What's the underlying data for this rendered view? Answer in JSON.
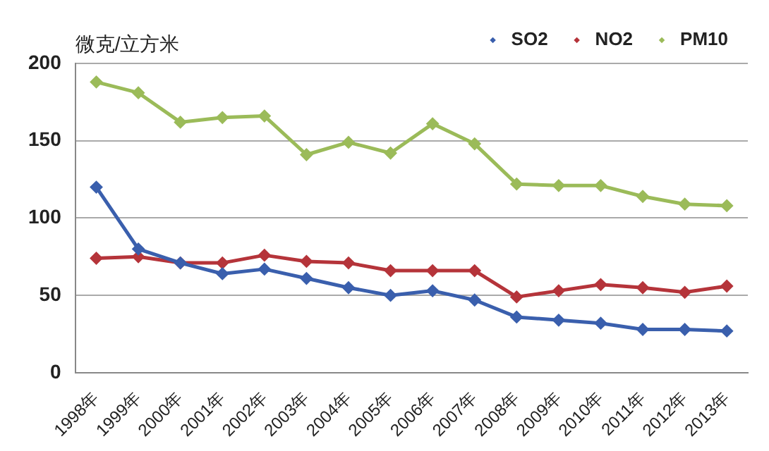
{
  "chart_data": {
    "type": "line",
    "ylabel": "微克/立方米",
    "categories": [
      "1998年",
      "1999年",
      "2000年",
      "2001年",
      "2002年",
      "2003年",
      "2004年",
      "2005年",
      "2006年",
      "2007年",
      "2008年",
      "2009年",
      "2010年",
      "2011年",
      "2012年",
      "2013年"
    ],
    "series": [
      {
        "name": "SO2",
        "color": "#3a5fad",
        "values": [
          120,
          80,
          71,
          64,
          67,
          61,
          55,
          50,
          53,
          47,
          36,
          34,
          32,
          28,
          28,
          27
        ]
      },
      {
        "name": "NO2",
        "color": "#b5343a",
        "values": [
          74,
          75,
          71,
          71,
          76,
          72,
          71,
          66,
          66,
          66,
          49,
          53,
          57,
          55,
          52,
          56
        ]
      },
      {
        "name": "PM10",
        "color": "#9bbb59",
        "values": [
          188,
          181,
          162,
          165,
          166,
          141,
          149,
          142,
          161,
          148,
          122,
          121,
          121,
          114,
          109,
          108
        ]
      }
    ],
    "ylim": [
      0,
      200
    ],
    "yticks": [
      0,
      50,
      100,
      150,
      200
    ],
    "grid": "y",
    "legend": "top right",
    "marker": "diamond",
    "line_style": "solid"
  }
}
